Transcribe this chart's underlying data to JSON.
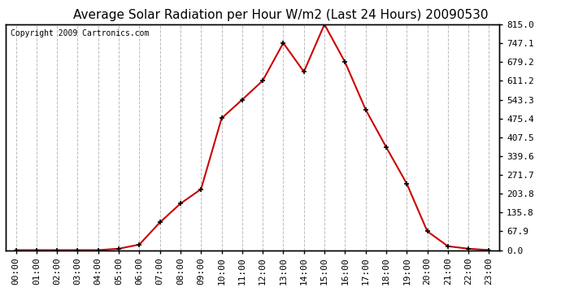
{
  "title": "Average Solar Radiation per Hour W/m2 (Last 24 Hours) 20090530",
  "copyright": "Copyright 2009 Cartronics.com",
  "hours": [
    "00:00",
    "01:00",
    "02:00",
    "03:00",
    "04:00",
    "05:00",
    "06:00",
    "07:00",
    "08:00",
    "09:00",
    "10:00",
    "11:00",
    "12:00",
    "13:00",
    "14:00",
    "15:00",
    "16:00",
    "17:00",
    "18:00",
    "19:00",
    "20:00",
    "21:00",
    "22:00",
    "23:00"
  ],
  "values": [
    0,
    0,
    0,
    0,
    0,
    5,
    20,
    100,
    168,
    220,
    476,
    543,
    612,
    748,
    644,
    815,
    679,
    508,
    372,
    240,
    68,
    14,
    5,
    0
  ],
  "yticks": [
    0.0,
    67.9,
    135.8,
    203.8,
    271.7,
    339.6,
    407.5,
    475.4,
    543.3,
    611.2,
    679.2,
    747.1,
    815.0
  ],
  "line_color": "#cc0000",
  "marker": "+",
  "marker_color": "#000000",
  "marker_size": 5,
  "marker_linewidth": 1.2,
  "line_width": 1.5,
  "grid_color": "#bbbbbb",
  "grid_linestyle": "--",
  "bg_color": "#ffffff",
  "title_fontsize": 11,
  "copyright_fontsize": 7,
  "tick_fontsize": 8,
  "ymax": 815.0,
  "ymin": 0.0,
  "figwidth": 6.9,
  "figheight": 3.75,
  "dpi": 100
}
